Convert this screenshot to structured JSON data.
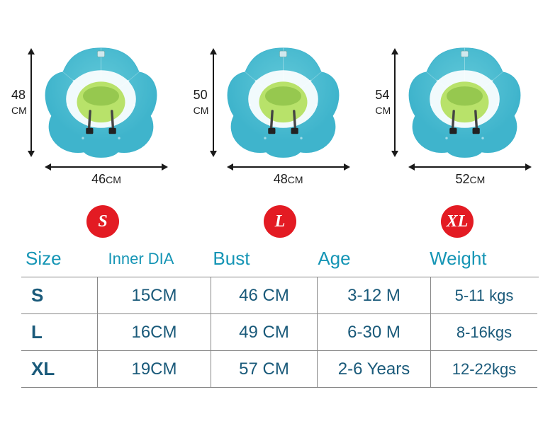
{
  "colors": {
    "badge_bg": "#e31b23",
    "badge_text": "#ffffff",
    "header_text": "#1595b5",
    "cell_text": "#1a5a7a",
    "dim_text": "#1a1a1a",
    "float_top": "#58c5d6",
    "float_bottom": "#3fb4cc",
    "float_seat": "#b8e26a",
    "float_seat_accent": "#96c84f",
    "float_band": "#ffffff"
  },
  "products": [
    {
      "height": "48",
      "height_unit": "CM",
      "width": "46",
      "width_unit": "CM",
      "badge": "S"
    },
    {
      "height": "50",
      "height_unit": "CM",
      "width": "48",
      "width_unit": "CM",
      "badge": "L"
    },
    {
      "height": "54",
      "height_unit": "CM",
      "width": "52",
      "width_unit": "CM",
      "badge": "XL"
    }
  ],
  "table": {
    "headers": {
      "size": "Size",
      "inner_dia": "Inner DIA",
      "bust": "Bust",
      "age": "Age",
      "weight": "Weight"
    },
    "rows": [
      {
        "size": "S",
        "inner_dia": "15CM",
        "bust": "46 CM",
        "age": "3-12 M",
        "weight": "5-11 kgs"
      },
      {
        "size": "L",
        "inner_dia": "16CM",
        "bust": "49 CM",
        "age": "6-30 M",
        "weight": "8-16kgs"
      },
      {
        "size": "XL",
        "inner_dia": "19CM",
        "bust": "57 CM",
        "age": "2-6 Years",
        "weight": "12-22kgs"
      }
    ]
  }
}
